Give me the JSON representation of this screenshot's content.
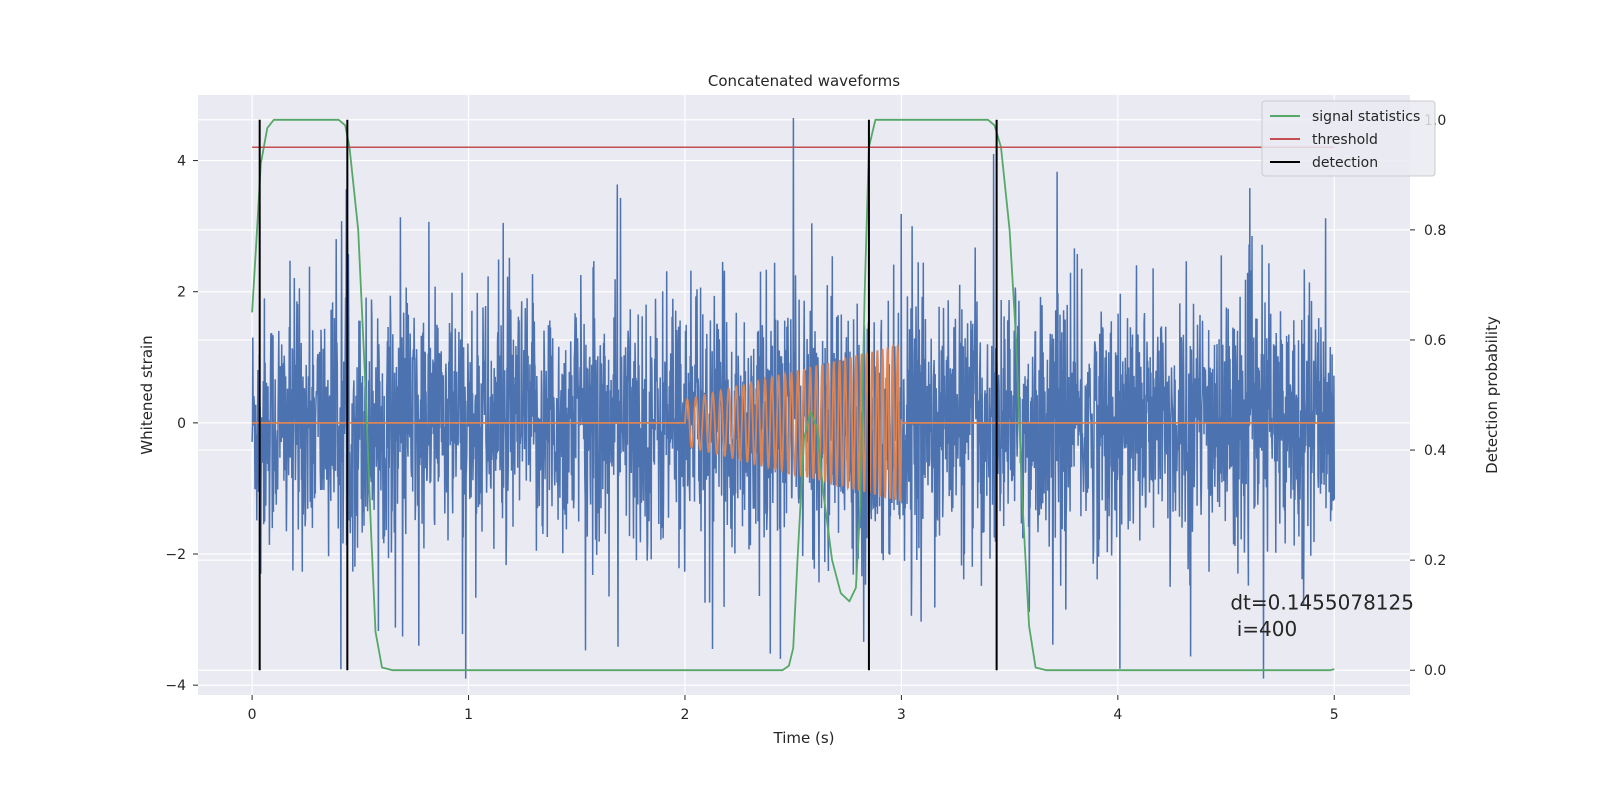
{
  "chart_data": {
    "type": "line",
    "title": "Concatenated waveforms",
    "xlabel": "Time (s)",
    "ylabel": "Whitened strain",
    "y2label": "Detection probability",
    "xlim": [
      -0.25,
      5.35
    ],
    "ylim": [
      -4.15,
      5.0
    ],
    "y2lim": [
      -0.045,
      1.045
    ],
    "xticks": [
      0,
      1,
      2,
      3,
      4,
      5
    ],
    "yticks": [
      -4,
      -2,
      0,
      2,
      4
    ],
    "y2ticks": [
      0.0,
      0.2,
      0.4,
      0.6,
      0.8,
      1.0
    ],
    "grid": true,
    "legend_position": "top-right",
    "series": [
      {
        "name": "",
        "axis": "left",
        "color": "#4c72b0",
        "description_of_shape": "whitened noise strain",
        "x_range": [
          0,
          5
        ],
        "amplitude": 1.3,
        "spikes": [
          {
            "x": 2.5,
            "y": 4.65
          },
          {
            "x": 3.72,
            "y": 3.83
          },
          {
            "x": 1.16,
            "y": 3.05
          },
          {
            "x": 4.96,
            "y": 3.12
          },
          {
            "x": 0.44,
            "y": 2.75
          },
          {
            "x": 1.54,
            "y": -3.47
          },
          {
            "x": 2.44,
            "y": -3.6
          },
          {
            "x": 4.01,
            "y": -3.75
          },
          {
            "x": 0.77,
            "y": -3.4
          },
          {
            "x": 3.05,
            "y": 3.0
          },
          {
            "x": 4.62,
            "y": 2.85
          },
          {
            "x": 0.04,
            "y": -2.3
          }
        ]
      },
      {
        "name": "",
        "axis": "left",
        "color": "#dd8452",
        "description_of_shape": "injected chirp signal",
        "zero_before": 2.0,
        "zero_after": 3.0,
        "chirp": {
          "t_start": 2.0,
          "t_end": 3.0,
          "f_start": 24,
          "f_end": 44,
          "a_start": 0.35,
          "a_end": 1.2
        }
      },
      {
        "name": "signal statistics",
        "axis": "right",
        "color": "#55a868",
        "points": [
          [
            0.0,
            0.65
          ],
          [
            0.02,
            0.78
          ],
          [
            0.04,
            0.92
          ],
          [
            0.07,
            0.985
          ],
          [
            0.1,
            1.0
          ],
          [
            0.4,
            1.0
          ],
          [
            0.43,
            0.99
          ],
          [
            0.45,
            0.95
          ],
          [
            0.49,
            0.8
          ],
          [
            0.52,
            0.55
          ],
          [
            0.55,
            0.25
          ],
          [
            0.57,
            0.07
          ],
          [
            0.6,
            0.005
          ],
          [
            0.65,
            0.0
          ],
          [
            2.45,
            0.0
          ],
          [
            2.48,
            0.008
          ],
          [
            2.5,
            0.04
          ],
          [
            2.52,
            0.2
          ],
          [
            2.55,
            0.42
          ],
          [
            2.58,
            0.47
          ],
          [
            2.61,
            0.44
          ],
          [
            2.64,
            0.32
          ],
          [
            2.68,
            0.2
          ],
          [
            2.72,
            0.14
          ],
          [
            2.76,
            0.125
          ],
          [
            2.79,
            0.15
          ],
          [
            2.81,
            0.3
          ],
          [
            2.83,
            0.68
          ],
          [
            2.85,
            0.95
          ],
          [
            2.88,
            1.0
          ],
          [
            2.92,
            1.0
          ],
          [
            3.4,
            1.0
          ],
          [
            3.43,
            0.99
          ],
          [
            3.46,
            0.95
          ],
          [
            3.5,
            0.8
          ],
          [
            3.53,
            0.6
          ],
          [
            3.56,
            0.3
          ],
          [
            3.59,
            0.08
          ],
          [
            3.62,
            0.005
          ],
          [
            3.67,
            0.0
          ],
          [
            4.98,
            0.0
          ],
          [
            5.0,
            0.002
          ]
        ]
      },
      {
        "name": "threshold",
        "axis": "right",
        "color": "#c44e52",
        "x": [
          0,
          5
        ],
        "y": [
          0.95,
          0.95
        ]
      },
      {
        "name": "detection",
        "axis": "right",
        "color": "#000000",
        "lines_x": [
          0.035,
          0.44,
          2.85,
          3.44
        ],
        "y": [
          0.0,
          1.0
        ]
      }
    ],
    "annotations": [
      {
        "text": "dt=0.1455078125",
        "x": 4.52,
        "y": 0.11
      },
      {
        "text": " i=400",
        "x": 4.52,
        "y": 0.062
      }
    ]
  }
}
